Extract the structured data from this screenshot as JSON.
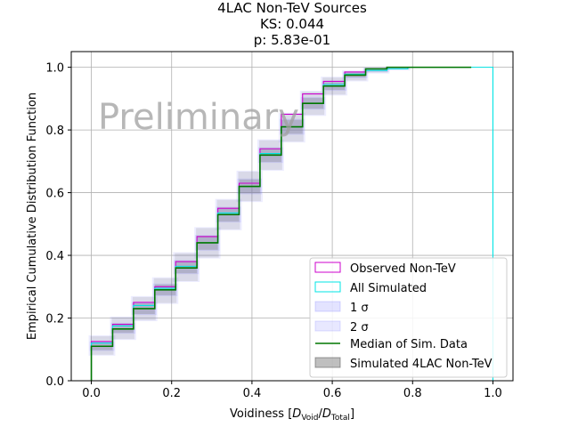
{
  "chart_data": {
    "type": "line",
    "title_lines": [
      "4LAC Non-TeV Sources",
      "KS: 0.044",
      "p: 5.83e-01"
    ],
    "xlabel_prefix": "Voidiness [",
    "xlabel_num_var": "D",
    "xlabel_num_sub": "Void",
    "xlabel_sep": "/",
    "xlabel_den_var": "D",
    "xlabel_den_sub": "Total",
    "xlabel_suffix": "]",
    "ylabel": "Empirical Cumulative Distribution Function",
    "watermark": "Preliminary",
    "xlim": [
      -0.05,
      1.05
    ],
    "ylim": [
      0,
      1.05
    ],
    "xticks": [
      0.0,
      0.2,
      0.4,
      0.6,
      0.8,
      1.0
    ],
    "xtick_labels": [
      "0.0",
      "0.2",
      "0.4",
      "0.6",
      "0.8",
      "1.0"
    ],
    "yticks": [
      0.0,
      0.2,
      0.4,
      0.6,
      0.8,
      1.0
    ],
    "ytick_labels": [
      "0.0",
      "0.2",
      "0.4",
      "0.6",
      "0.8",
      "1.0"
    ],
    "grid": true,
    "legend_position": "lower-right",
    "bin_edges": [
      0.0,
      0.053,
      0.105,
      0.158,
      0.21,
      0.263,
      0.315,
      0.368,
      0.42,
      0.473,
      0.526,
      0.578,
      0.631,
      0.683,
      0.736,
      0.788,
      0.841,
      0.894,
      0.946
    ],
    "series": [
      {
        "name": "Observed Non-TeV",
        "kind": "step",
        "color": "#cc00cc",
        "values": [
          0.125,
          0.18,
          0.25,
          0.3,
          0.38,
          0.46,
          0.55,
          0.63,
          0.74,
          0.85,
          0.915,
          0.955,
          0.985,
          0.995,
          1.0,
          1.0,
          1.0,
          1.0
        ]
      },
      {
        "name": "All Simulated",
        "kind": "step",
        "color": "#00e5e5",
        "values": [
          0.12,
          0.175,
          0.24,
          0.295,
          0.365,
          0.44,
          0.535,
          0.62,
          0.725,
          0.81,
          0.885,
          0.945,
          0.978,
          0.99,
          0.995,
          1.0,
          1.0,
          1.0
        ],
        "drop_x": 1.0
      },
      {
        "name": "Median of Sim. Data",
        "kind": "step",
        "color": "#007700",
        "values": [
          0.11,
          0.165,
          0.23,
          0.29,
          0.36,
          0.44,
          0.53,
          0.62,
          0.72,
          0.81,
          0.885,
          0.94,
          0.975,
          0.995,
          1.0,
          1.0,
          1.0,
          1.0
        ]
      }
    ],
    "band_1sigma": {
      "name": "1 σ",
      "lower": [
        0.095,
        0.15,
        0.21,
        0.27,
        0.34,
        0.415,
        0.505,
        0.595,
        0.695,
        0.785,
        0.865,
        0.925,
        0.965,
        0.985,
        0.995,
        1.0,
        1.0,
        1.0
      ],
      "upper": [
        0.125,
        0.185,
        0.25,
        0.31,
        0.385,
        0.465,
        0.555,
        0.645,
        0.745,
        0.835,
        0.905,
        0.955,
        0.985,
        0.998,
        1.0,
        1.0,
        1.0,
        1.0
      ]
    },
    "band_2sigma": {
      "name": "2 σ",
      "lower": [
        0.08,
        0.13,
        0.19,
        0.245,
        0.315,
        0.39,
        0.48,
        0.57,
        0.67,
        0.76,
        0.845,
        0.91,
        0.955,
        0.98,
        0.99,
        1.0,
        1.0,
        1.0
      ],
      "upper": [
        0.145,
        0.205,
        0.27,
        0.33,
        0.41,
        0.49,
        0.58,
        0.67,
        0.77,
        0.855,
        0.925,
        0.97,
        0.99,
        1.0,
        1.0,
        1.0,
        1.0,
        1.0
      ]
    },
    "sim_band_label": "Simulated 4LAC Non-TeV",
    "legend": [
      "Observed Non-TeV",
      "All Simulated",
      "1 σ",
      "2 σ",
      "Median of Sim. Data",
      "Simulated 4LAC Non-TeV"
    ],
    "colors": {
      "observed": "#cc00cc",
      "all_sim": "#00e5e5",
      "sigma_fill": "#8080ff",
      "median": "#007700",
      "sim_fill": "#808080"
    }
  }
}
